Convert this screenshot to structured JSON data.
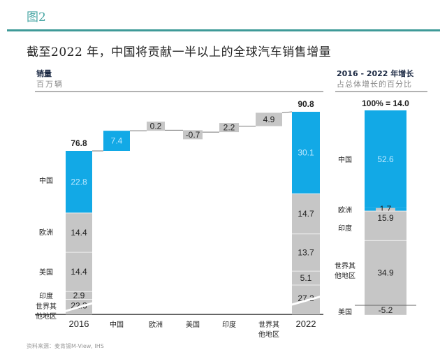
{
  "figure_label": "图2",
  "chart_title": "截至2022 年，中国将贡献一半以上的全球汽车销售增量",
  "footnote": "资料来源：麦肯锡M-View, IHS",
  "colors": {
    "china": "#12a9e6",
    "other": "#c6c6c6",
    "rule": "#3e9a98"
  },
  "chart_data": [
    {
      "type": "bar",
      "subtype": "waterfall",
      "title": "销量",
      "ylabel": "百万辆",
      "categories": [
        "2016",
        "中国",
        "欧洲",
        "美国",
        "印度",
        "世界其他地区",
        "2022"
      ],
      "category_labels": [
        "2016",
        "中国",
        "欧洲",
        "美国",
        "印度",
        "世界其\n他地区",
        "2022"
      ],
      "start_total": {
        "label": "2016",
        "total": "76.8",
        "segments": [
          {
            "name": "中国",
            "value": 22.8,
            "label": "22.8",
            "color": "china"
          },
          {
            "name": "欧洲",
            "value": 14.4,
            "label": "14.4",
            "color": "other"
          },
          {
            "name": "美国",
            "value": 14.4,
            "label": "14.4",
            "color": "other"
          },
          {
            "name": "印度",
            "value": 2.9,
            "label": "2.9",
            "color": "other"
          },
          {
            "name": "世界其他地区",
            "value": 22.3,
            "label": "22.3",
            "color": "other",
            "axis_break": true
          }
        ],
        "segment_labels": [
          "中国",
          "欧洲",
          "美国",
          "印度",
          "世界其\n他地区"
        ]
      },
      "increments": [
        {
          "name": "中国",
          "value": 7.4,
          "label": "7.4",
          "color": "china"
        },
        {
          "name": "欧洲",
          "value": 0.2,
          "label": "0.2",
          "color": "other"
        },
        {
          "name": "美国",
          "value": -0.7,
          "label": "-0.7",
          "color": "other"
        },
        {
          "name": "印度",
          "value": 2.2,
          "label": "2.2",
          "color": "other"
        },
        {
          "name": "世界其他地区",
          "value": 4.9,
          "label": "4.9",
          "color": "other"
        }
      ],
      "end_total": {
        "label": "2022",
        "total": "90.8",
        "segments": [
          {
            "name": "中国",
            "value": 30.1,
            "label": "30.1",
            "color": "china"
          },
          {
            "name": "欧洲",
            "value": 14.7,
            "label": "14.7",
            "color": "other"
          },
          {
            "name": "美国",
            "value": 13.7,
            "label": "13.7",
            "color": "other"
          },
          {
            "name": "印度",
            "value": 5.1,
            "label": "5.1",
            "color": "other"
          },
          {
            "name": "世界其他地区",
            "value": 27.2,
            "label": "27.2",
            "color": "other",
            "axis_break": true
          }
        ]
      }
    },
    {
      "type": "bar",
      "subtype": "stacked-100",
      "title": "2016 - 2022 年增长",
      "ylabel": "占总体增长的百分比",
      "total_label": "100% = 14.0",
      "segments": [
        {
          "name": "中国",
          "value": 52.6,
          "label": "52.6",
          "color": "china"
        },
        {
          "name": "欧洲",
          "value": 1.7,
          "label": "1.7",
          "color": "other"
        },
        {
          "name": "印度",
          "value": 15.9,
          "label": "15.9",
          "color": "other"
        },
        {
          "name": "世界其他地区",
          "value": 34.9,
          "label": "34.9",
          "color": "other"
        },
        {
          "name": "美国",
          "value": -5.2,
          "label": "-5.2",
          "color": "other"
        }
      ],
      "segment_labels": [
        "中国",
        "欧洲",
        "印度",
        "世界其\n他地区",
        "美国"
      ]
    }
  ]
}
